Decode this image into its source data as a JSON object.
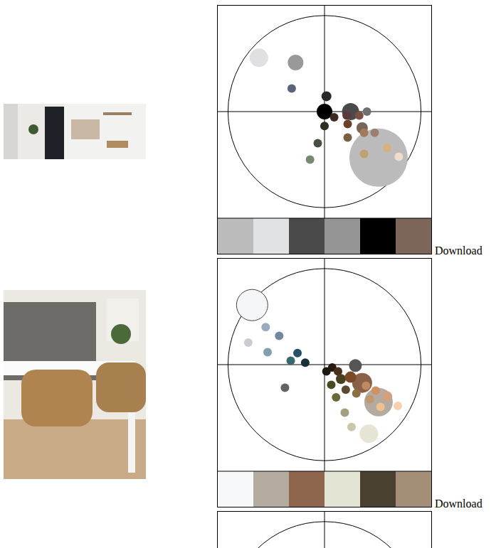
{
  "chart_data": [
    {
      "type": "scatter",
      "tick_labels": false,
      "xlim": [
        -1.11,
        1.11
      ],
      "ylim": [
        -1.11,
        1.11
      ],
      "x": [
        0.56,
        -0.68,
        -0.3,
        0.27,
        0,
        -0.34,
        0.02,
        0.44,
        0.1,
        0.23,
        0.36,
        0.24,
        0,
        0.39,
        0.52,
        0.41,
        0.24,
        -0.07,
        -0.15,
        0.41,
        0.65,
        0.77
      ],
      "y": [
        -0.48,
        0.56,
        0.51,
        0,
        0,
        0.24,
        0.16,
        0,
        -0.06,
        -0.04,
        -0.04,
        -0.13,
        -0.15,
        -0.17,
        -0.22,
        -0.22,
        -0.27,
        -0.33,
        -0.5,
        -0.44,
        -0.38,
        -0.47
      ],
      "sizes": [
        41,
        13,
        11,
        12,
        11,
        6,
        7,
        6,
        6,
        6,
        6,
        6,
        6,
        8,
        6,
        6,
        6,
        6,
        6,
        6,
        6,
        6
      ],
      "colors": [
        "#bcbbbb",
        "#e0e0e2",
        "#999999",
        "#4a4a4a",
        "#000000",
        "#5a6478",
        "#2a2a2a",
        "#707070",
        "#3a2a20",
        "#5a3a3a",
        "#7a5040",
        "#6a4028",
        "#2a3020",
        "#7a6458",
        "#9a8070",
        "#a07a5a",
        "#7a6040",
        "#4a5040",
        "#7a8870",
        "#c0a070",
        "#d8b080",
        "#f0dcc8"
      ],
      "palette": [
        "#bcbbbb",
        "#e1e2e4",
        "#4a4a4a",
        "#959595",
        "#000000",
        "#7d6659"
      ],
      "link": "Download"
    },
    {
      "type": "scatter",
      "tick_labels": false,
      "xlim": [
        -1.11,
        1.11
      ],
      "ylim": [
        -1.11,
        1.11
      ],
      "x": [
        -0.75,
        0.56,
        0.39,
        0.46,
        0.32,
        -0.61,
        -0.47,
        -0.79,
        -0.59,
        -0.28,
        -0.35,
        -0.2,
        -0.41,
        0.08,
        0.02,
        0.14,
        0.17,
        0.27,
        0.07,
        0.22,
        0.33,
        0.43,
        0.12,
        0.53,
        0.65,
        0.47,
        0.58,
        0.76,
        0.21,
        0.28
      ],
      "y": [
        0.62,
        -0.39,
        -0.19,
        -0.72,
        -0.01,
        0.39,
        0.3,
        0.23,
        0.13,
        0.12,
        0.04,
        0.02,
        -0.24,
        -0.03,
        -0.07,
        -0.07,
        -0.15,
        -0.13,
        -0.21,
        -0.26,
        -0.3,
        -0.22,
        -0.34,
        -0.27,
        -0.33,
        -0.36,
        -0.44,
        -0.43,
        -0.5,
        -0.65
      ],
      "sizes": [
        22,
        20,
        14,
        13,
        9,
        6,
        6,
        6,
        6,
        6,
        6,
        6,
        6,
        6,
        6,
        6,
        7,
        8,
        6,
        6,
        6,
        6,
        6,
        6,
        7,
        6,
        6,
        6,
        6,
        6
      ],
      "colors": [
        "#f4f6f8",
        "#b4aaa0",
        "#8a6048",
        "#e6e4d4",
        "#555555",
        "#9aaac0",
        "#7088a0",
        "#c8ccd0",
        "#80a0b0",
        "#2a5068",
        "#3a6870",
        "#1a3038",
        "#606468",
        "#2a1a10",
        "#1a1a10",
        "#4a3018",
        "#4a4020",
        "#7a4a28",
        "#4a4a20",
        "#5a4a30",
        "#8a7040",
        "#c08a60",
        "#6a6a38",
        "#d09060",
        "#d0a080",
        "#c09870",
        "#f0c090",
        "#f8d0b0",
        "#a0a080",
        "#c8c8a8"
      ],
      "palette": [
        "#f6f8fa",
        "#b4aca0",
        "#8e654d",
        "#e4e4d4",
        "#4a4030",
        "#a48e78"
      ],
      "link": "Download"
    },
    {
      "type": "scatter",
      "tick_labels": false,
      "xlim": [
        -1.11,
        1.11
      ],
      "ylim": [
        -1.11,
        1.11
      ],
      "x": [],
      "y": [],
      "sizes": [],
      "colors": [],
      "palette": []
    }
  ]
}
